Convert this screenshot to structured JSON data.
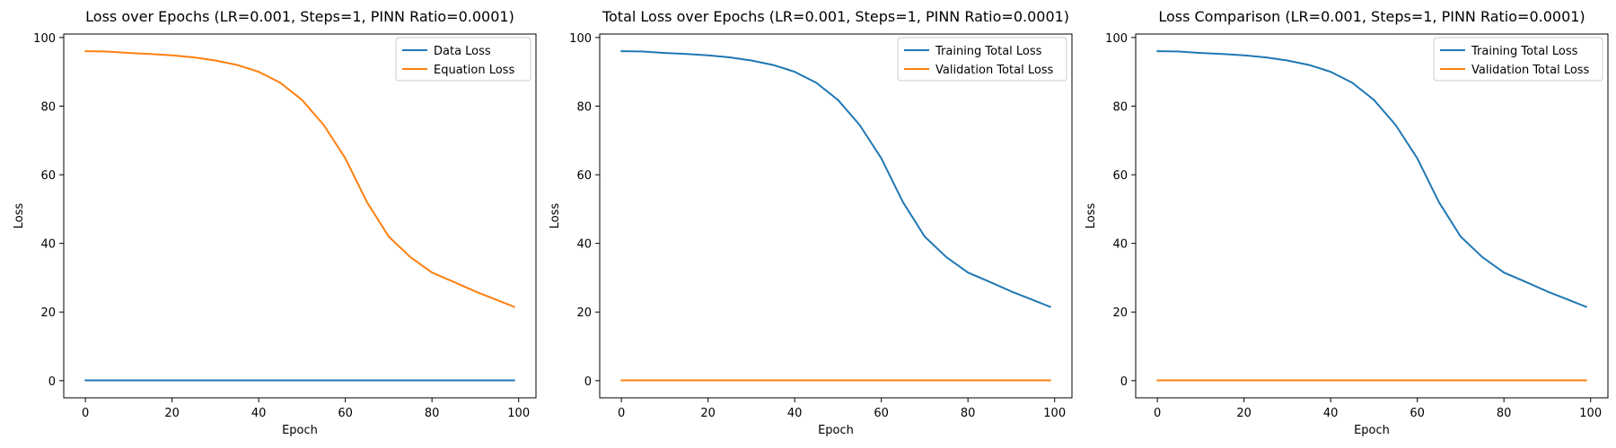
{
  "chart_data": [
    {
      "type": "line",
      "title": "Loss over Epochs (LR=0.001, Steps=1, PINN Ratio=0.0001)",
      "xlabel": "Epoch",
      "ylabel": "Loss",
      "xlim": [
        -5,
        104
      ],
      "ylim": [
        -5,
        101
      ],
      "xticks": [
        0,
        20,
        40,
        60,
        80,
        100
      ],
      "yticks": [
        0,
        20,
        40,
        60,
        80,
        100
      ],
      "grid": false,
      "legend_position": "top-right",
      "series": [
        {
          "name": "Data Loss",
          "color": "#1f77b4",
          "x": [
            0,
            10,
            20,
            30,
            40,
            50,
            60,
            70,
            80,
            90,
            99
          ],
          "y": [
            0.1,
            0.1,
            0.1,
            0.1,
            0.1,
            0.1,
            0.1,
            0.1,
            0.1,
            0.1,
            0.1
          ]
        },
        {
          "name": "Equation Loss",
          "color": "#ff7f0e",
          "x": [
            0,
            5,
            10,
            15,
            20,
            25,
            30,
            35,
            40,
            45,
            50,
            55,
            60,
            65,
            70,
            75,
            80,
            85,
            90,
            95,
            99
          ],
          "y": [
            96.0,
            95.9,
            95.5,
            95.2,
            94.8,
            94.2,
            93.3,
            92.0,
            90.0,
            86.8,
            81.8,
            74.5,
            64.8,
            52.0,
            42.0,
            36.0,
            31.5,
            28.8,
            26.0,
            23.5,
            21.5
          ]
        }
      ]
    },
    {
      "type": "line",
      "title": "Total Loss over Epochs (LR=0.001, Steps=1, PINN Ratio=0.0001)",
      "xlabel": "Epoch",
      "ylabel": "Loss",
      "xlim": [
        -5,
        104
      ],
      "ylim": [
        -5,
        101
      ],
      "xticks": [
        0,
        20,
        40,
        60,
        80,
        100
      ],
      "yticks": [
        0,
        20,
        40,
        60,
        80,
        100
      ],
      "grid": false,
      "legend_position": "top-right",
      "series": [
        {
          "name": "Training Total Loss",
          "color": "#1f77b4",
          "x": [
            0,
            5,
            10,
            15,
            20,
            25,
            30,
            35,
            40,
            45,
            50,
            55,
            60,
            65,
            70,
            75,
            80,
            85,
            90,
            95,
            99
          ],
          "y": [
            96.0,
            95.9,
            95.5,
            95.2,
            94.8,
            94.2,
            93.3,
            92.0,
            90.0,
            86.8,
            81.8,
            74.5,
            64.8,
            52.0,
            42.0,
            36.0,
            31.5,
            28.8,
            26.0,
            23.5,
            21.5
          ]
        },
        {
          "name": "Validation Total Loss",
          "color": "#ff7f0e",
          "x": [
            0,
            10,
            20,
            30,
            40,
            50,
            60,
            70,
            80,
            90,
            99
          ],
          "y": [
            0.1,
            0.1,
            0.1,
            0.1,
            0.1,
            0.1,
            0.1,
            0.1,
            0.1,
            0.1,
            0.1
          ]
        }
      ]
    },
    {
      "type": "line",
      "title": "Loss Comparison (LR=0.001, Steps=1, PINN Ratio=0.0001)",
      "xlabel": "Epoch",
      "ylabel": "Loss",
      "xlim": [
        -5,
        104
      ],
      "ylim": [
        -5,
        101
      ],
      "xticks": [
        0,
        20,
        40,
        60,
        80,
        100
      ],
      "yticks": [
        0,
        20,
        40,
        60,
        80,
        100
      ],
      "grid": false,
      "legend_position": "top-right",
      "series": [
        {
          "name": "Training Total Loss",
          "color": "#1f77b4",
          "x": [
            0,
            5,
            10,
            15,
            20,
            25,
            30,
            35,
            40,
            45,
            50,
            55,
            60,
            65,
            70,
            75,
            80,
            85,
            90,
            95,
            99
          ],
          "y": [
            96.0,
            95.9,
            95.5,
            95.2,
            94.8,
            94.2,
            93.3,
            92.0,
            90.0,
            86.8,
            81.8,
            74.5,
            64.8,
            52.0,
            42.0,
            36.0,
            31.5,
            28.8,
            26.0,
            23.5,
            21.5
          ]
        },
        {
          "name": "Validation Total Loss",
          "color": "#ff7f0e",
          "x": [
            0,
            10,
            20,
            30,
            40,
            50,
            60,
            70,
            80,
            90,
            99
          ],
          "y": [
            0.1,
            0.1,
            0.1,
            0.1,
            0.1,
            0.1,
            0.1,
            0.1,
            0.1,
            0.1,
            0.1
          ]
        }
      ]
    }
  ]
}
